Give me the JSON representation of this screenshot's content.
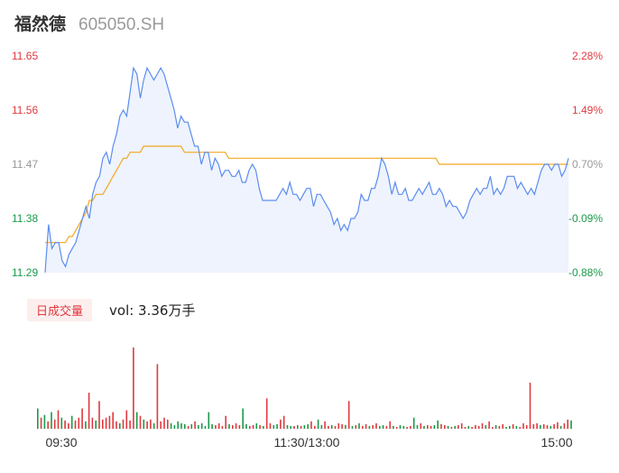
{
  "header": {
    "name": "福然德",
    "code": "605050.SH"
  },
  "volume": {
    "tab_label": "日成交量",
    "text": "vol: 3.36万手"
  },
  "colors": {
    "up": "#e0393e",
    "down": "#1a9a4a",
    "neutral": "#999999",
    "price_line": "#5b8def",
    "avg_line": "#f5a623",
    "area_fill": "#eef3fd"
  },
  "chart_data": {
    "type": "line",
    "title": "",
    "ylim": [
      11.29,
      11.65
    ],
    "prev_close": 11.388,
    "y_tick_labels": [
      "11.65",
      "11.56",
      "11.47",
      "11.38",
      "11.29"
    ],
    "pct_tick_labels": [
      "2.28%",
      "1.49%",
      "0.70%",
      "-0.09%",
      "-0.88%"
    ],
    "x_tick_labels": [
      "09:30",
      "11:30/13:00",
      "15:00"
    ],
    "series": [
      {
        "key": "price",
        "values": [
          11.29,
          11.37,
          11.33,
          11.34,
          11.34,
          11.31,
          11.3,
          11.32,
          11.33,
          11.34,
          11.36,
          11.38,
          11.4,
          11.38,
          11.42,
          11.44,
          11.45,
          11.48,
          11.49,
          11.47,
          11.5,
          11.52,
          11.55,
          11.56,
          11.55,
          11.59,
          11.63,
          11.62,
          11.58,
          11.61,
          11.63,
          11.62,
          11.61,
          11.62,
          11.63,
          11.62,
          11.6,
          11.58,
          11.56,
          11.53,
          11.55,
          11.54,
          11.54,
          11.52,
          11.5,
          11.5,
          11.47,
          11.49,
          11.49,
          11.46,
          11.48,
          11.47,
          11.45,
          11.46,
          11.46,
          11.45,
          11.45,
          11.46,
          11.44,
          11.44,
          11.46,
          11.47,
          11.46,
          11.43,
          11.41,
          11.41,
          11.41,
          11.41,
          11.41,
          11.42,
          11.43,
          11.42,
          11.44,
          11.42,
          11.42,
          11.41,
          11.42,
          11.43,
          11.43,
          11.4,
          11.42,
          11.42,
          11.41,
          11.4,
          11.39,
          11.37,
          11.38,
          11.36,
          11.37,
          11.36,
          11.38,
          11.38,
          11.39,
          11.42,
          11.41,
          11.41,
          11.43,
          11.43,
          11.45,
          11.48,
          11.47,
          11.45,
          11.42,
          11.44,
          11.42,
          11.42,
          11.43,
          11.41,
          11.41,
          11.42,
          11.43,
          11.42,
          11.43,
          11.44,
          11.42,
          11.42,
          11.43,
          11.42,
          11.4,
          11.41,
          11.4,
          11.4,
          11.39,
          11.38,
          11.39,
          11.41,
          11.42,
          11.43,
          11.42,
          11.43,
          11.43,
          11.45,
          11.42,
          11.43,
          11.42,
          11.43,
          11.45,
          11.45,
          11.45,
          11.43,
          11.44,
          11.43,
          11.42,
          11.43,
          11.42,
          11.44,
          11.46,
          11.47,
          11.47,
          11.46,
          11.47,
          11.47,
          11.45,
          11.46,
          11.48
        ]
      },
      {
        "key": "avg",
        "values": [
          11.34,
          11.34,
          11.34,
          11.34,
          11.34,
          11.34,
          11.34,
          11.35,
          11.35,
          11.36,
          11.37,
          11.38,
          11.39,
          11.41,
          11.41,
          11.42,
          11.42,
          11.42,
          11.43,
          11.44,
          11.45,
          11.46,
          11.47,
          11.48,
          11.48,
          11.49,
          11.49,
          11.49,
          11.49,
          11.5,
          11.5,
          11.5,
          11.5,
          11.5,
          11.5,
          11.5,
          11.5,
          11.5,
          11.5,
          11.5,
          11.5,
          11.49,
          11.49,
          11.49,
          11.49,
          11.49,
          11.49,
          11.49,
          11.49,
          11.49,
          11.49,
          11.49,
          11.49,
          11.49,
          11.48,
          11.48,
          11.48,
          11.48,
          11.48,
          11.48,
          11.48,
          11.48,
          11.48,
          11.48,
          11.48,
          11.48,
          11.48,
          11.48,
          11.48,
          11.48,
          11.48,
          11.48,
          11.48,
          11.48,
          11.48,
          11.48,
          11.48,
          11.48,
          11.48,
          11.48,
          11.48,
          11.48,
          11.48,
          11.48,
          11.48,
          11.48,
          11.48,
          11.48,
          11.48,
          11.48,
          11.48,
          11.48,
          11.48,
          11.48,
          11.48,
          11.48,
          11.48,
          11.48,
          11.48,
          11.48,
          11.48,
          11.48,
          11.48,
          11.48,
          11.48,
          11.48,
          11.48,
          11.48,
          11.48,
          11.48,
          11.48,
          11.48,
          11.48,
          11.48,
          11.48,
          11.48,
          11.47,
          11.47,
          11.47,
          11.47,
          11.47,
          11.47,
          11.47,
          11.47,
          11.47,
          11.47,
          11.47,
          11.47,
          11.47,
          11.47,
          11.47,
          11.47,
          11.47,
          11.47,
          11.47,
          11.47,
          11.47,
          11.47,
          11.47,
          11.47,
          11.47,
          11.47,
          11.47,
          11.47,
          11.47,
          11.47,
          11.47,
          11.47,
          11.47,
          11.47,
          11.47,
          11.47,
          11.47,
          11.47,
          11.47
        ]
      }
    ],
    "volume_bars": [
      {
        "v": 22,
        "d": "down"
      },
      {
        "v": 12,
        "d": "up"
      },
      {
        "v": 15,
        "d": "down"
      },
      {
        "v": 8,
        "d": "up"
      },
      {
        "v": 18,
        "d": "down"
      },
      {
        "v": 10,
        "d": "up"
      },
      {
        "v": 20,
        "d": "up"
      },
      {
        "v": 12,
        "d": "down"
      },
      {
        "v": 9,
        "d": "up"
      },
      {
        "v": 6,
        "d": "up"
      },
      {
        "v": 14,
        "d": "down"
      },
      {
        "v": 9,
        "d": "up"
      },
      {
        "v": 12,
        "d": "up"
      },
      {
        "v": 22,
        "d": "up"
      },
      {
        "v": 8,
        "d": "down"
      },
      {
        "v": 39,
        "d": "up"
      },
      {
        "v": 12,
        "d": "up"
      },
      {
        "v": 9,
        "d": "down"
      },
      {
        "v": 30,
        "d": "up"
      },
      {
        "v": 10,
        "d": "up"
      },
      {
        "v": 12,
        "d": "up"
      },
      {
        "v": 14,
        "d": "up"
      },
      {
        "v": 18,
        "d": "up"
      },
      {
        "v": 8,
        "d": "up"
      },
      {
        "v": 6,
        "d": "down"
      },
      {
        "v": 10,
        "d": "up"
      },
      {
        "v": 20,
        "d": "up"
      },
      {
        "v": 9,
        "d": "up"
      },
      {
        "v": 88,
        "d": "up"
      },
      {
        "v": 18,
        "d": "down"
      },
      {
        "v": 14,
        "d": "up"
      },
      {
        "v": 10,
        "d": "down"
      },
      {
        "v": 8,
        "d": "up"
      },
      {
        "v": 10,
        "d": "up"
      },
      {
        "v": 6,
        "d": "down"
      },
      {
        "v": 70,
        "d": "up"
      },
      {
        "v": 8,
        "d": "up"
      },
      {
        "v": 12,
        "d": "up"
      },
      {
        "v": 10,
        "d": "up"
      },
      {
        "v": 6,
        "d": "down"
      },
      {
        "v": 4,
        "d": "down"
      },
      {
        "v": 8,
        "d": "down"
      },
      {
        "v": 6,
        "d": "down"
      },
      {
        "v": 5,
        "d": "down"
      },
      {
        "v": 3,
        "d": "up"
      },
      {
        "v": 5,
        "d": "down"
      },
      {
        "v": 8,
        "d": "up"
      },
      {
        "v": 4,
        "d": "down"
      },
      {
        "v": 6,
        "d": "down"
      },
      {
        "v": 3,
        "d": "down"
      },
      {
        "v": 18,
        "d": "down"
      },
      {
        "v": 5,
        "d": "down"
      },
      {
        "v": 4,
        "d": "up"
      },
      {
        "v": 6,
        "d": "up"
      },
      {
        "v": 3,
        "d": "up"
      },
      {
        "v": 14,
        "d": "up"
      },
      {
        "v": 5,
        "d": "down"
      },
      {
        "v": 4,
        "d": "up"
      },
      {
        "v": 6,
        "d": "up"
      },
      {
        "v": 4,
        "d": "up"
      },
      {
        "v": 22,
        "d": "down"
      },
      {
        "v": 5,
        "d": "down"
      },
      {
        "v": 3,
        "d": "up"
      },
      {
        "v": 4,
        "d": "up"
      },
      {
        "v": 6,
        "d": "down"
      },
      {
        "v": 4,
        "d": "up"
      },
      {
        "v": 3,
        "d": "down"
      },
      {
        "v": 33,
        "d": "up"
      },
      {
        "v": 6,
        "d": "up"
      },
      {
        "v": 4,
        "d": "down"
      },
      {
        "v": 5,
        "d": "down"
      },
      {
        "v": 10,
        "d": "up"
      },
      {
        "v": 14,
        "d": "up"
      },
      {
        "v": 4,
        "d": "down"
      },
      {
        "v": 3,
        "d": "down"
      },
      {
        "v": 3,
        "d": "up"
      },
      {
        "v": 4,
        "d": "down"
      },
      {
        "v": 3,
        "d": "up"
      },
      {
        "v": 4,
        "d": "down"
      },
      {
        "v": 5,
        "d": "down"
      },
      {
        "v": 8,
        "d": "up"
      },
      {
        "v": 3,
        "d": "up"
      },
      {
        "v": 10,
        "d": "down"
      },
      {
        "v": 4,
        "d": "down"
      },
      {
        "v": 8,
        "d": "up"
      },
      {
        "v": 3,
        "d": "up"
      },
      {
        "v": 4,
        "d": "down"
      },
      {
        "v": 3,
        "d": "up"
      },
      {
        "v": 6,
        "d": "up"
      },
      {
        "v": 5,
        "d": "up"
      },
      {
        "v": 4,
        "d": "down"
      },
      {
        "v": 30,
        "d": "up"
      },
      {
        "v": 3,
        "d": "down"
      },
      {
        "v": 4,
        "d": "up"
      },
      {
        "v": 6,
        "d": "down"
      },
      {
        "v": 3,
        "d": "up"
      },
      {
        "v": 5,
        "d": "up"
      },
      {
        "v": 3,
        "d": "down"
      },
      {
        "v": 4,
        "d": "up"
      },
      {
        "v": 6,
        "d": "up"
      },
      {
        "v": 3,
        "d": "down"
      },
      {
        "v": 4,
        "d": "down"
      },
      {
        "v": 3,
        "d": "up"
      },
      {
        "v": 8,
        "d": "up"
      },
      {
        "v": 3,
        "d": "down"
      },
      {
        "v": 2,
        "d": "up"
      },
      {
        "v": 4,
        "d": "down"
      },
      {
        "v": 3,
        "d": "down"
      },
      {
        "v": 2,
        "d": "up"
      },
      {
        "v": 3,
        "d": "up"
      },
      {
        "v": 12,
        "d": "down"
      },
      {
        "v": 4,
        "d": "down"
      },
      {
        "v": 6,
        "d": "up"
      },
      {
        "v": 3,
        "d": "down"
      },
      {
        "v": 4,
        "d": "up"
      },
      {
        "v": 3,
        "d": "up"
      },
      {
        "v": 4,
        "d": "down"
      },
      {
        "v": 9,
        "d": "down"
      },
      {
        "v": 5,
        "d": "up"
      },
      {
        "v": 4,
        "d": "up"
      },
      {
        "v": 3,
        "d": "down"
      },
      {
        "v": 2,
        "d": "up"
      },
      {
        "v": 3,
        "d": "down"
      },
      {
        "v": 4,
        "d": "up"
      },
      {
        "v": 6,
        "d": "up"
      },
      {
        "v": 2,
        "d": "up"
      },
      {
        "v": 3,
        "d": "down"
      },
      {
        "v": 2,
        "d": "up"
      },
      {
        "v": 4,
        "d": "up"
      },
      {
        "v": 3,
        "d": "up"
      },
      {
        "v": 6,
        "d": "up"
      },
      {
        "v": 4,
        "d": "down"
      },
      {
        "v": 8,
        "d": "up"
      },
      {
        "v": 2,
        "d": "up"
      },
      {
        "v": 4,
        "d": "down"
      },
      {
        "v": 3,
        "d": "up"
      },
      {
        "v": 5,
        "d": "up"
      },
      {
        "v": 2,
        "d": "down"
      },
      {
        "v": 3,
        "d": "down"
      },
      {
        "v": 5,
        "d": "up"
      },
      {
        "v": 3,
        "d": "down"
      },
      {
        "v": 2,
        "d": "up"
      },
      {
        "v": 6,
        "d": "up"
      },
      {
        "v": 4,
        "d": "up"
      },
      {
        "v": 50,
        "d": "up"
      },
      {
        "v": 5,
        "d": "up"
      },
      {
        "v": 6,
        "d": "up"
      },
      {
        "v": 4,
        "d": "down"
      },
      {
        "v": 5,
        "d": "up"
      },
      {
        "v": 4,
        "d": "up"
      },
      {
        "v": 3,
        "d": "down"
      },
      {
        "v": 5,
        "d": "up"
      },
      {
        "v": 7,
        "d": "up"
      },
      {
        "v": 3,
        "d": "down"
      },
      {
        "v": 6,
        "d": "up"
      },
      {
        "v": 10,
        "d": "up"
      },
      {
        "v": 9,
        "d": "down"
      }
    ]
  }
}
